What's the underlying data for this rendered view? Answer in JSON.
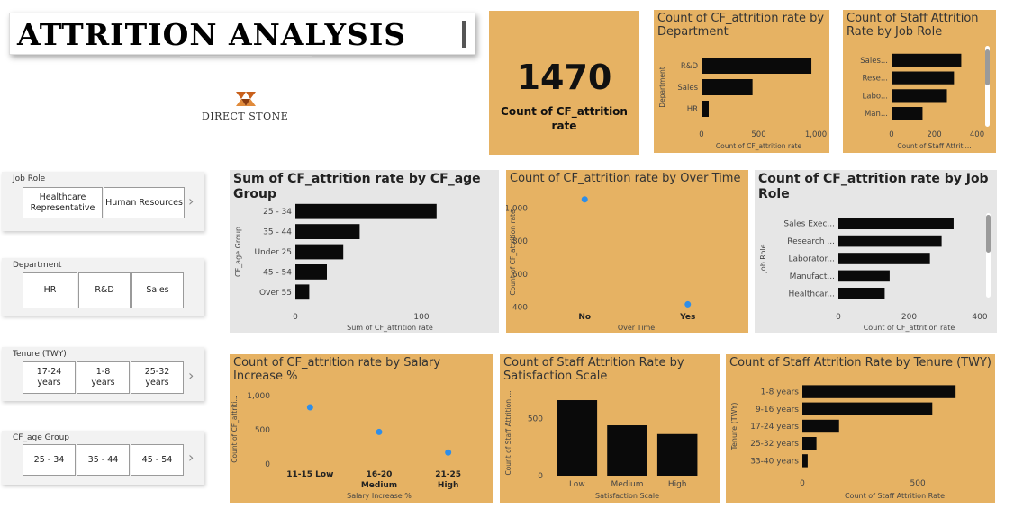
{
  "header": {
    "title": "ATTRITION ANALYSIS",
    "logo_text": "DIRECT STONE"
  },
  "kpi": {
    "value": "1470",
    "label": "Count of CF_attrition rate"
  },
  "colors": {
    "panel_orange": "#e6b263",
    "panel_grey": "#e6e6e6",
    "bar": "#0a0a0a",
    "dot": "#2f8ee8"
  },
  "slicers": {
    "job_role": {
      "label": "Job Role",
      "options": [
        "Healthcare Representative",
        "Human Resources"
      ]
    },
    "department": {
      "label": "Department",
      "options": [
        "HR",
        "R&D",
        "Sales"
      ]
    },
    "tenure": {
      "label": "Tenure (TWY)",
      "options": [
        "17-24 years",
        "1-8 years",
        "25-32 years"
      ]
    },
    "age_group": {
      "label": "CF_age Group",
      "options": [
        "25 - 34",
        "35 - 44",
        "45 - 54"
      ]
    }
  },
  "chart_data": [
    {
      "id": "dept",
      "type": "bar",
      "orientation": "horizontal",
      "title": "Count of CF_attrition rate by Department",
      "xlabel": "Count of CF_attrition rate",
      "ylabel": "Department",
      "categories": [
        "R&D",
        "Sales",
        "HR"
      ],
      "values": [
        961,
        446,
        63
      ],
      "xlim": [
        0,
        1000
      ],
      "xticks": [
        "0",
        "500",
        "1,000"
      ]
    },
    {
      "id": "jobrole_small",
      "type": "bar",
      "orientation": "horizontal",
      "title": "Count of Staff Attrition Rate by Job Role",
      "xlabel": "Count of Staff Attriti...",
      "ylabel": "",
      "categories": [
        "Sales...",
        "Rese...",
        "Labo...",
        "Man..."
      ],
      "values": [
        326,
        292,
        259,
        145
      ],
      "xlim": [
        0,
        400
      ],
      "xticks": [
        "0",
        "200",
        "400"
      ]
    },
    {
      "id": "agegroup",
      "type": "bar",
      "orientation": "horizontal",
      "title": "Sum of CF_attrition rate by CF_age Group",
      "xlabel": "Sum of CF_attrition rate",
      "ylabel": "CF_age Group",
      "categories": [
        "25 - 34",
        "35 - 44",
        "Under 25",
        "45 - 54",
        "Over 55"
      ],
      "values": [
        112,
        51,
        38,
        25,
        11
      ],
      "xlim": [
        0,
        150
      ],
      "xticks": [
        "0",
        "100"
      ]
    },
    {
      "id": "overtime",
      "type": "scatter",
      "title": "Count of CF_attrition rate by Over Time",
      "xlabel": "Over Time",
      "ylabel": "Count of CF_attrition rate",
      "categories": [
        "No",
        "Yes"
      ],
      "values": [
        1054,
        416
      ],
      "ylim": [
        380,
        1080
      ],
      "yticks": [
        400,
        600,
        800,
        1000
      ],
      "ytick_labels": [
        "400",
        "600",
        "800",
        "1,000"
      ]
    },
    {
      "id": "jobrole_big",
      "type": "bar",
      "orientation": "horizontal",
      "title": "Count of CF_attrition rate by Job Role",
      "xlabel": "Count of CF_attrition rate",
      "ylabel": "Job Role",
      "categories": [
        "Sales Exec...",
        "Research ...",
        "Laborator...",
        "Manufact...",
        "Healthcar..."
      ],
      "values": [
        326,
        292,
        259,
        145,
        131
      ],
      "xlim": [
        0,
        400
      ],
      "xticks": [
        "0",
        "200",
        "400"
      ]
    },
    {
      "id": "salary",
      "type": "scatter",
      "title": "Count of CF_attrition rate by Salary Increase %",
      "xlabel": "Salary Increase %",
      "ylabel": "Count of CF_attriti...",
      "categories": [
        "11-15 Low",
        "16-20 Medium",
        "21-25 High"
      ],
      "values": [
        830,
        470,
        170
      ],
      "ylim": [
        -50,
        1080
      ],
      "yticks": [
        0,
        500,
        1000
      ],
      "ytick_labels": [
        "0",
        "500",
        "1,000"
      ]
    },
    {
      "id": "satisfaction",
      "type": "bar",
      "orientation": "vertical",
      "title": "Count of Staff Attrition Rate by Satisfaction Scale",
      "xlabel": "Satisfaction Scale",
      "ylabel": "Count of Staff Attrition ...",
      "categories": [
        "Low",
        "Medium",
        "High"
      ],
      "values": [
        663,
        442,
        365
      ],
      "ylim": [
        0,
        750
      ],
      "yticks": [
        0,
        500
      ],
      "ytick_labels": [
        "0",
        "500"
      ]
    },
    {
      "id": "tenure",
      "type": "bar",
      "orientation": "horizontal",
      "title": "Count of Staff Attrition Rate by Tenure (TWY)",
      "xlabel": "Count of Staff Attrition Rate",
      "ylabel": "Tenure (TWY)",
      "categories": [
        "1-8 years",
        "9-16 years",
        "17-24 years",
        "25-32 years",
        "33-40 years"
      ],
      "values": [
        664,
        563,
        159,
        61,
        23
      ],
      "xlim": [
        0,
        800
      ],
      "xticks": [
        "0",
        "500"
      ]
    }
  ]
}
